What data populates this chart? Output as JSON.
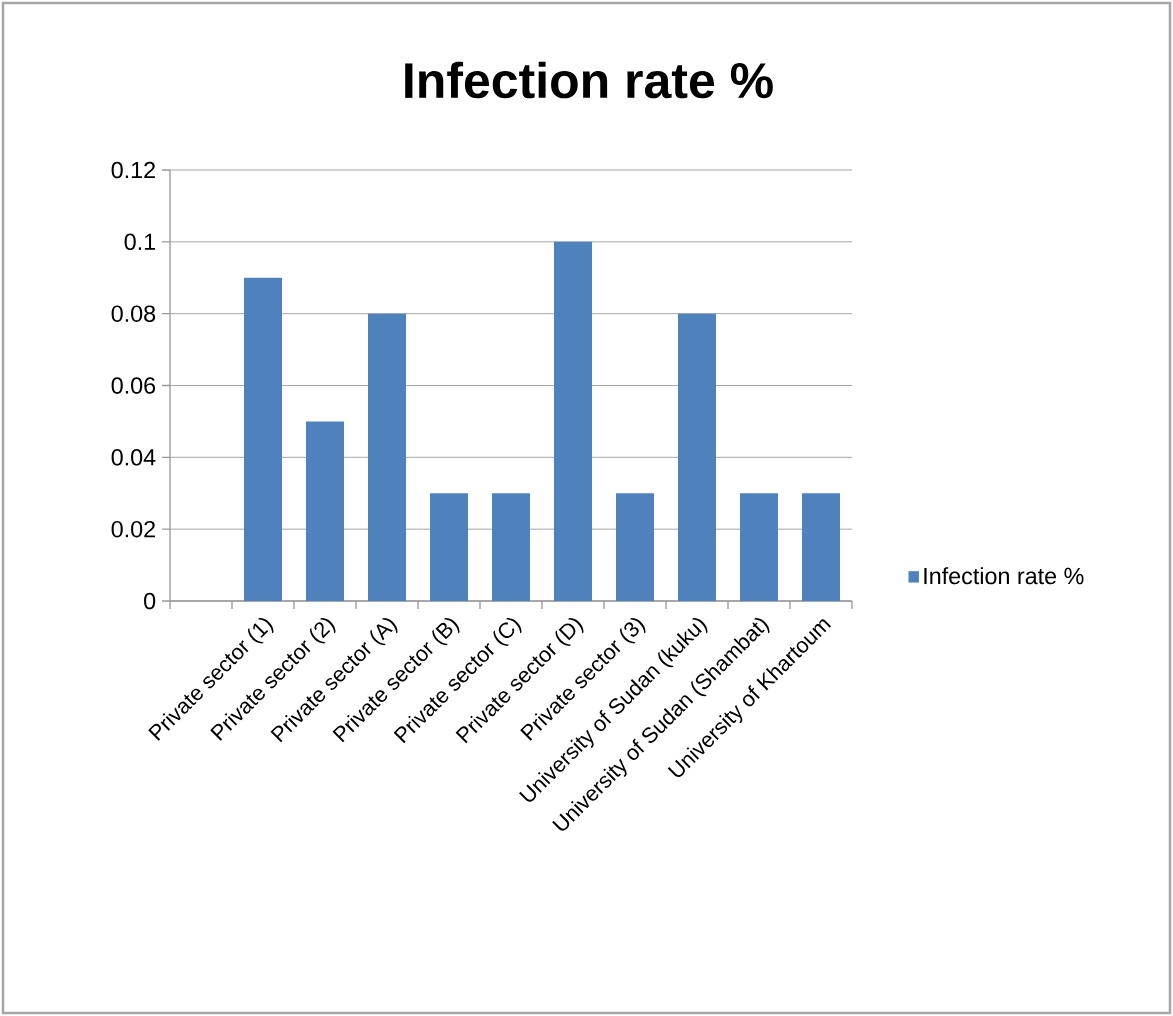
{
  "chart_data": {
    "type": "bar",
    "title": "Infection rate %",
    "categories": [
      null,
      "Private sector (1)",
      "Private sector (2)",
      "Private sector (A)",
      "Private sector (B)",
      "Private sector (C)",
      "Private sector (D)",
      "Private sector (3)",
      "University of Sudan (kuku)",
      "University of Sudan (Shambat)",
      "University of Khartoum"
    ],
    "series": [
      {
        "name": "Infection rate %",
        "color": "#4f81bd",
        "values": [
          null,
          0.09,
          0.05,
          0.08,
          0.03,
          0.03,
          0.1,
          0.03,
          0.08,
          0.03,
          0.03
        ]
      }
    ],
    "ylim": [
      0,
      0.12
    ],
    "yticks": [
      0,
      0.02,
      0.04,
      0.06,
      0.08,
      0.1,
      0.12
    ],
    "grid": "y",
    "legend": "right"
  }
}
